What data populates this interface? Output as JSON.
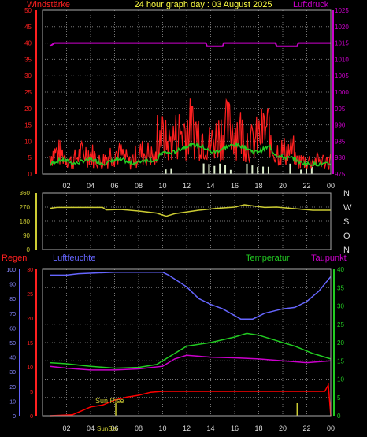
{
  "colors": {
    "wind": "#ff2020",
    "gust": "#ff0000",
    "windAvg": "#22cc22",
    "pressure": "#cc00cc",
    "direction": "#cccc33",
    "humidity": "#6666ff",
    "temperature": "#22cc22",
    "dewpoint": "#cc00cc",
    "rain": "#ff0000",
    "grid": "#777777",
    "header": "#ffff44"
  },
  "header": {
    "title": "24 hour graph day : 03 August 2025",
    "left_label": "Windstärke",
    "right_label": "Luftdruck"
  },
  "bottom": {
    "label_regen": "Regen",
    "label_luftfeuchte": "Luftfeuchte",
    "label_temperatur": "Temperatur",
    "label_taupunkt": "Taupunkt",
    "sunrise_label": "Sun Rise",
    "sunset_label": "SunSet"
  },
  "chart_data": [
    {
      "type": "line",
      "x_tick_labels": [
        "02",
        "04",
        "06",
        "08",
        "10",
        "12",
        "14",
        "16",
        "18",
        "20",
        "22",
        "00"
      ],
      "left_ticks": [
        "0",
        "5",
        "10",
        "15",
        "20",
        "25",
        "30",
        "35",
        "40",
        "45",
        "50"
      ],
      "right_ticks": [
        "975",
        "980",
        "985",
        "990",
        "995",
        "1000",
        "1005",
        "1010",
        "1015",
        "1020",
        "1025"
      ],
      "ylim_left": [
        0,
        50
      ],
      "ylim_right": [
        975,
        1025
      ],
      "series": [
        {
          "name": "Luftdruck",
          "axis": "right",
          "x": [
            0.6,
            1.0,
            13.6,
            13.7,
            15.0,
            15.1,
            19.4,
            19.5,
            21.2,
            21.3,
            24.0
          ],
          "values": [
            1014,
            1015,
            1015,
            1014,
            1014,
            1015,
            1015,
            1014,
            1014,
            1015,
            1015
          ]
        }
      ]
    },
    {
      "type": "line",
      "left_ticks": [
        "0",
        "90",
        "180",
        "270",
        "360"
      ],
      "right_ticks": [
        "N",
        "W",
        "S",
        "O",
        "N"
      ],
      "ylim": [
        0,
        360
      ],
      "series": [
        {
          "axis": "left",
          "x": [
            0.6,
            1.2,
            5.0,
            5.3,
            6.5,
            8.0,
            9.5,
            10.3,
            11.0,
            13.0,
            14.5,
            16.0,
            16.8,
            18.5,
            19.5,
            21.0,
            22.5,
            24.0
          ],
          "values": [
            262,
            268,
            268,
            252,
            255,
            245,
            232,
            212,
            228,
            250,
            262,
            270,
            285,
            268,
            270,
            260,
            250,
            250
          ]
        }
      ]
    },
    {
      "type": "line",
      "x_tick_labels": [
        "02",
        "04",
        "06",
        "08",
        "10",
        "12",
        "14",
        "16",
        "18",
        "20",
        "22",
        "00"
      ],
      "regen_ticks": [
        "0",
        "5",
        "10",
        "15",
        "20",
        "25",
        "30"
      ],
      "humidity_ticks": [
        "0",
        "10",
        "20",
        "30",
        "40",
        "50",
        "60",
        "70",
        "80",
        "90",
        "100"
      ],
      "temp_ticks": [
        "0",
        "5",
        "10",
        "15",
        "20",
        "25",
        "30",
        "35",
        "40"
      ],
      "ylim_regen": [
        0,
        30
      ],
      "ylim_humidity": [
        0,
        100
      ],
      "ylim_temperature": [
        0,
        40
      ],
      "sunrise_hour": 6.1,
      "sunset_hour": 21.2,
      "series": [
        {
          "name": "Luftfeuchte",
          "axis": "humidity",
          "x": [
            0.6,
            2.0,
            3.0,
            6.0,
            8.0,
            10.0,
            10.5,
            12.0,
            13.0,
            14.0,
            15.0,
            16.5,
            17.5,
            18.5,
            20.0,
            21.0,
            22.0,
            23.0,
            24.0
          ],
          "values": [
            96,
            96,
            97,
            98,
            98,
            98,
            96,
            88,
            80,
            76,
            73,
            66,
            66,
            70,
            73,
            74,
            78,
            85,
            95
          ]
        },
        {
          "name": "Temperatur",
          "axis": "temperature",
          "x": [
            0.6,
            2.0,
            4.0,
            6.0,
            8.0,
            9.5,
            10.5,
            12.0,
            14.0,
            16.0,
            17.0,
            18.0,
            19.5,
            21.0,
            22.5,
            24.0
          ],
          "values": [
            14.5,
            14.2,
            13.5,
            13.0,
            13.2,
            14.0,
            16.0,
            19.0,
            20.0,
            21.5,
            22.5,
            22.0,
            20.5,
            19.0,
            17.0,
            15.5
          ]
        },
        {
          "name": "Taupunkt",
          "axis": "temperature",
          "x": [
            0.6,
            2.0,
            4.0,
            6.0,
            8.0,
            10.0,
            11.0,
            12.0,
            14.0,
            16.0,
            18.0,
            20.0,
            22.0,
            24.0
          ],
          "values": [
            13.5,
            13.0,
            12.5,
            12.5,
            12.8,
            13.5,
            15.5,
            16.5,
            16.0,
            15.8,
            15.5,
            15.0,
            14.5,
            15.0
          ]
        },
        {
          "name": "Regen",
          "axis": "regen",
          "x": [
            0.6,
            2.5,
            4.0,
            5.0,
            6.0,
            7.0,
            8.0,
            9.0,
            10.0,
            23.5,
            23.8,
            24.0
          ],
          "values": [
            0.0,
            0.2,
            1.8,
            2.2,
            3.2,
            3.8,
            4.2,
            4.8,
            5.0,
            5.0,
            6.3,
            0.0
          ]
        }
      ]
    }
  ]
}
